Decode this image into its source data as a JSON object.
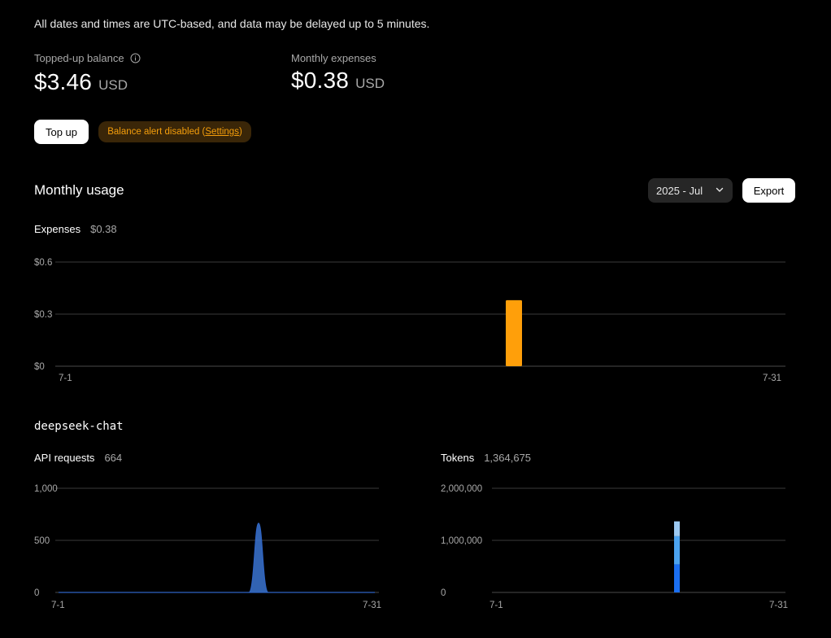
{
  "notice": "All dates and times are UTC-based, and data may be delayed up to 5 minutes.",
  "balances": {
    "topped_up": {
      "label": "Topped-up balance",
      "amount": "$3.46",
      "currency": "USD"
    },
    "monthly_expenses": {
      "label": "Monthly expenses",
      "amount": "$0.38",
      "currency": "USD"
    }
  },
  "actions": {
    "top_up_label": "Top up",
    "alert_prefix": "Balance alert disabled (",
    "alert_link": "Settings",
    "alert_suffix": ")"
  },
  "monthly_usage": {
    "title": "Monthly usage",
    "month_selected": "2025 - Jul",
    "export_label": "Export"
  },
  "expenses_metric": {
    "label": "Expenses",
    "value": "$0.38"
  },
  "model": {
    "name": "deepseek-chat"
  },
  "api_requests_metric": {
    "label": "API requests",
    "value": "664"
  },
  "tokens_metric": {
    "label": "Tokens",
    "value": "1,364,675"
  },
  "colors": {
    "expense_bar": "#ff9f0a",
    "request_area": "#3b74d1",
    "token_light": "#9cc9f2",
    "token_mid": "#4ba3f0",
    "token_dark": "#1a6ff2"
  },
  "chart_data": [
    {
      "type": "bar",
      "title": "Expenses",
      "x_labels": [
        "7-1",
        "7-31"
      ],
      "y_ticks": [
        "$0",
        "$0.3",
        "$0.6"
      ],
      "ylim": [
        0,
        0.6
      ],
      "x": [
        "7-19"
      ],
      "values": [
        0.38
      ]
    },
    {
      "type": "area",
      "title": "API requests",
      "x_labels": [
        "7-1",
        "7-31"
      ],
      "y_ticks": [
        "0",
        "500",
        "1,000"
      ],
      "ylim": [
        0,
        1000
      ],
      "x": [
        "7-19"
      ],
      "values": [
        664
      ]
    },
    {
      "type": "bar",
      "title": "Tokens",
      "x_labels": [
        "7-1",
        "7-31"
      ],
      "y_ticks": [
        "0",
        "1,000,000",
        "2,000,000"
      ],
      "ylim": [
        0,
        2000000
      ],
      "x": [
        "7-19"
      ],
      "series": [
        {
          "name": "segment-1",
          "values": [
            540000
          ]
        },
        {
          "name": "segment-2",
          "values": [
            540000
          ]
        },
        {
          "name": "segment-3",
          "values": [
            284675
          ]
        }
      ]
    }
  ]
}
